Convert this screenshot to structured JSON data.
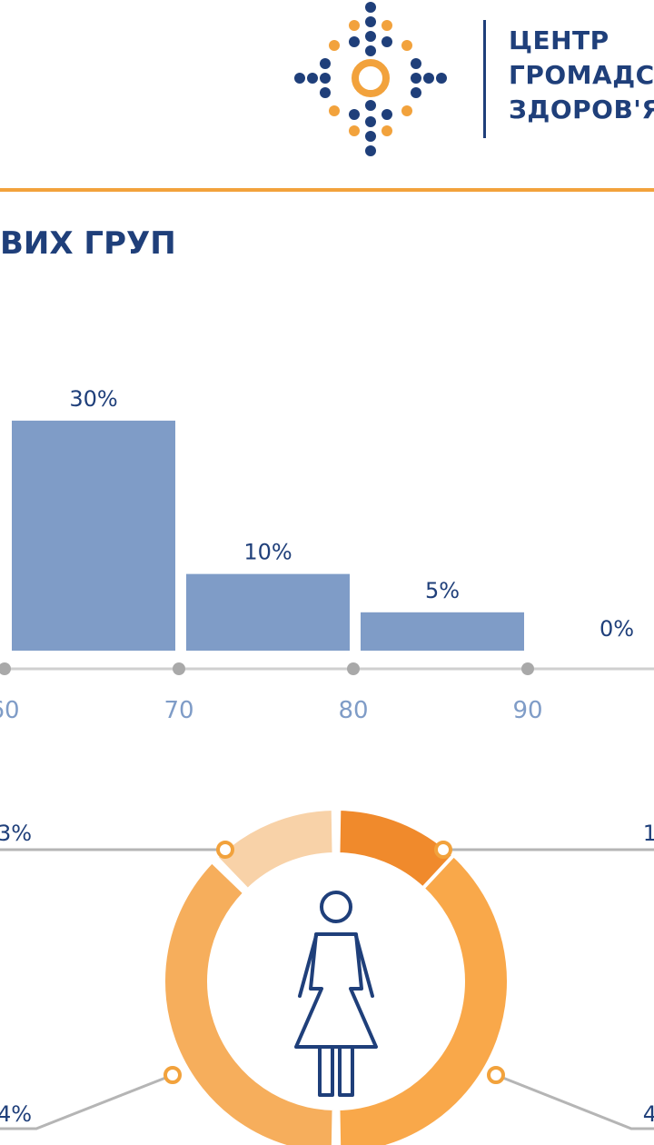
{
  "header": {
    "org_name_lines": [
      "ЦЕНТР",
      "ГРОМАДС",
      "ЗДОРОВ'Я"
    ],
    "colors": {
      "navy": "#1f3f7a",
      "orange": "#f2a23c"
    },
    "logo_icon": "dotted-diamond-logo-icon"
  },
  "section": {
    "title": "ВИХ ГРУП"
  },
  "chart_data": [
    {
      "type": "bar",
      "categories": [
        "60–70",
        "70–80",
        "80–90",
        "90+"
      ],
      "values": [
        30,
        10,
        5,
        0
      ],
      "data_labels": [
        "30%",
        "10%",
        "5%",
        "0%"
      ],
      "x_ticks": [
        "60",
        "70",
        "80",
        "90"
      ],
      "ylim": [
        0,
        35
      ],
      "grid": false,
      "bar_color": "#7f9cc7",
      "axis_color": "#cfcfcf",
      "label_color": "#1f3f7a",
      "tick_color": "#7f9cc7"
    },
    {
      "type": "pie",
      "donut": true,
      "visible_labels": [
        {
          "text": "3%",
          "side": "left"
        },
        {
          "text": "1",
          "side": "right"
        },
        {
          "text": "4%",
          "side": "left"
        },
        {
          "text": "4",
          "side": "right"
        }
      ],
      "segment_colors": [
        "#f08a2c",
        "#f9a84a",
        "#f6ae5c",
        "#f8d2a8"
      ],
      "center_icon": "woman-icon"
    }
  ]
}
